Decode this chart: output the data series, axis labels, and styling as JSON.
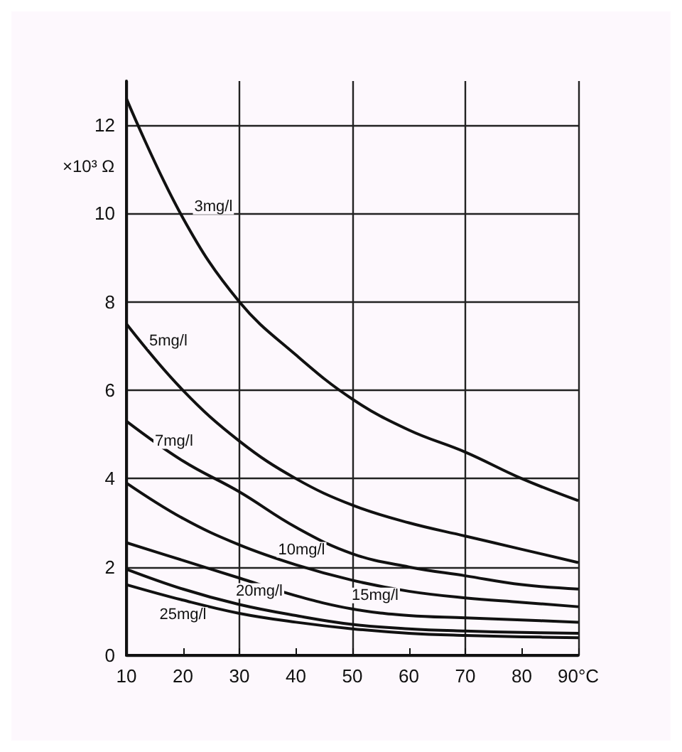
{
  "chart_data": {
    "type": "line",
    "ylabel": "×10³ Ω",
    "x": [
      10,
      20,
      30,
      40,
      50,
      60,
      70,
      80,
      90
    ],
    "series": [
      {
        "name": "3mg/l",
        "color": "#111111",
        "values": [
          12.6,
          9.9,
          8.0,
          6.8,
          5.8,
          5.1,
          4.6,
          4.0,
          3.5
        ]
      },
      {
        "name": "5mg/l",
        "color": "#111111",
        "values": [
          7.5,
          6.0,
          4.85,
          4.0,
          3.4,
          3.0,
          2.7,
          2.4,
          2.1
        ]
      },
      {
        "name": "7mg/l",
        "color": "#111111",
        "values": [
          5.3,
          4.4,
          3.7,
          2.9,
          2.3,
          2.0,
          1.8,
          1.6,
          1.5
        ]
      },
      {
        "name": "10mg/l",
        "color": "#111111",
        "values": [
          3.9,
          3.1,
          2.5,
          2.05,
          1.7,
          1.45,
          1.3,
          1.2,
          1.1
        ]
      },
      {
        "name": "15mg/l",
        "color": "#111111",
        "values": [
          2.55,
          2.15,
          1.75,
          1.35,
          1.05,
          0.9,
          0.85,
          0.8,
          0.75
        ]
      },
      {
        "name": "20mg/l",
        "color": "#111111",
        "values": [
          1.95,
          1.5,
          1.15,
          0.9,
          0.7,
          0.6,
          0.55,
          0.52,
          0.5
        ]
      },
      {
        "name": "25mg/l",
        "color": "#111111",
        "values": [
          1.6,
          1.25,
          0.95,
          0.75,
          0.6,
          0.5,
          0.45,
          0.42,
          0.4
        ]
      }
    ],
    "xlim": [
      10,
      90
    ],
    "xticks": [
      10,
      20,
      30,
      40,
      50,
      60,
      70,
      80,
      {
        "value": 90,
        "label": "90°C"
      }
    ],
    "ylim": [
      0,
      13
    ],
    "yticks": [
      0,
      2,
      4,
      6,
      8,
      10,
      12
    ],
    "grid": true,
    "legend": false,
    "marker": "none",
    "line_style": "solid"
  }
}
